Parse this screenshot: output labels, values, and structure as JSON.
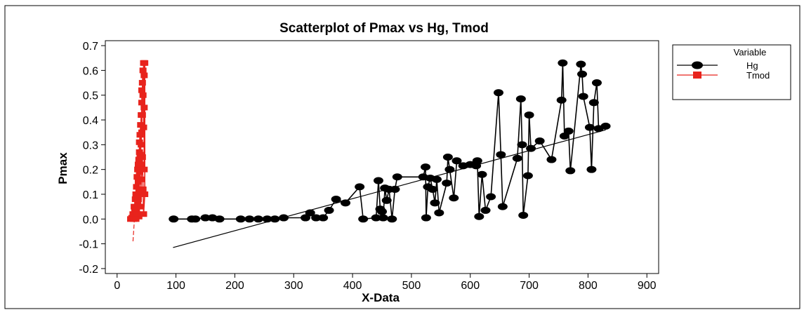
{
  "chart_data": {
    "type": "scatter",
    "title": "Scatterplot of Pmax vs Hg, Tmod",
    "xlabel": "X-Data",
    "ylabel": "Pmax",
    "xlim": [
      -20,
      920
    ],
    "ylim": [
      -0.22,
      0.72
    ],
    "xticks": [
      0,
      100,
      200,
      300,
      400,
      500,
      600,
      700,
      800,
      900
    ],
    "yticks": [
      -0.2,
      -0.1,
      0.0,
      0.1,
      0.2,
      0.3,
      0.4,
      0.5,
      0.6,
      0.7
    ],
    "ytick_labels": [
      "-0.2",
      "-0.1",
      "0.0",
      "0.1",
      "0.2",
      "0.3",
      "0.4",
      "0.5",
      "0.6",
      "0.7"
    ],
    "grid": false,
    "legend": {
      "title": "Variable",
      "placement": "right",
      "entries": [
        "Hg",
        "Tmod"
      ]
    },
    "series": [
      {
        "name": "Hg",
        "color": "#000000",
        "marker": "circle",
        "connected": true,
        "trendline": [
          [
            95,
            -0.115
          ],
          [
            830,
            0.36
          ]
        ],
        "points": [
          [
            96,
            0.0
          ],
          [
            127,
            0.0
          ],
          [
            133,
            0.0
          ],
          [
            150,
            0.005
          ],
          [
            162,
            0.005
          ],
          [
            174,
            0.0
          ],
          [
            210,
            0.0
          ],
          [
            225,
            0.0
          ],
          [
            240,
            0.0
          ],
          [
            255,
            0.0
          ],
          [
            268,
            0.0
          ],
          [
            283,
            0.005
          ],
          [
            320,
            0.005
          ],
          [
            328,
            0.025
          ],
          [
            338,
            0.005
          ],
          [
            350,
            0.005
          ],
          [
            360,
            0.035
          ],
          [
            372,
            0.08
          ],
          [
            388,
            0.065
          ],
          [
            412,
            0.13
          ],
          [
            418,
            0.0
          ],
          [
            440,
            0.005
          ],
          [
            444,
            0.155
          ],
          [
            447,
            0.04
          ],
          [
            450,
            0.03
          ],
          [
            452,
            0.005
          ],
          [
            455,
            0.125
          ],
          [
            458,
            0.075
          ],
          [
            462,
            0.12
          ],
          [
            467,
            0.0
          ],
          [
            472,
            0.12
          ],
          [
            476,
            0.17
          ],
          [
            520,
            0.17
          ],
          [
            524,
            0.21
          ],
          [
            525,
            0.005
          ],
          [
            528,
            0.13
          ],
          [
            532,
            0.165
          ],
          [
            536,
            0.12
          ],
          [
            540,
            0.065
          ],
          [
            543,
            0.16
          ],
          [
            547,
            0.025
          ],
          [
            560,
            0.145
          ],
          [
            562,
            0.25
          ],
          [
            565,
            0.2
          ],
          [
            572,
            0.085
          ],
          [
            577,
            0.235
          ],
          [
            588,
            0.215
          ],
          [
            600,
            0.22
          ],
          [
            610,
            0.215
          ],
          [
            612,
            0.235
          ],
          [
            615,
            0.01
          ],
          [
            620,
            0.18
          ],
          [
            626,
            0.035
          ],
          [
            635,
            0.09
          ],
          [
            648,
            0.51
          ],
          [
            652,
            0.26
          ],
          [
            655,
            0.05
          ],
          [
            680,
            0.245
          ],
          [
            686,
            0.485
          ],
          [
            688,
            0.3
          ],
          [
            690,
            0.015
          ],
          [
            698,
            0.175
          ],
          [
            700,
            0.42
          ],
          [
            703,
            0.285
          ],
          [
            718,
            0.315
          ],
          [
            738,
            0.24
          ],
          [
            755,
            0.48
          ],
          [
            757,
            0.63
          ],
          [
            760,
            0.335
          ],
          [
            767,
            0.355
          ],
          [
            770,
            0.195
          ],
          [
            788,
            0.625
          ],
          [
            790,
            0.585
          ],
          [
            792,
            0.495
          ],
          [
            803,
            0.37
          ],
          [
            806,
            0.2
          ],
          [
            810,
            0.47
          ],
          [
            815,
            0.55
          ],
          [
            818,
            0.365
          ],
          [
            830,
            0.375
          ]
        ]
      },
      {
        "name": "Tmod",
        "color": "#e8231c",
        "marker": "square",
        "connected": true,
        "trendline": [
          [
            27,
            -0.09
          ],
          [
            47,
            0.64
          ]
        ],
        "points": [
          [
            23,
            0.0
          ],
          [
            25,
            0.005
          ],
          [
            27,
            0.02
          ],
          [
            28,
            0.0
          ],
          [
            29,
            0.05
          ],
          [
            30,
            0.03
          ],
          [
            31,
            0.08
          ],
          [
            32,
            0.1
          ],
          [
            33,
            0.04
          ],
          [
            33,
            0.13
          ],
          [
            34,
            0.17
          ],
          [
            35,
            0.06
          ],
          [
            35,
            0.2
          ],
          [
            36,
            0.15
          ],
          [
            36,
            0.22
          ],
          [
            37,
            0.24
          ],
          [
            37,
            0.11
          ],
          [
            38,
            0.27
          ],
          [
            38,
            0.19
          ],
          [
            38,
            0.31
          ],
          [
            39,
            0.26
          ],
          [
            39,
            0.34
          ],
          [
            40,
            0.38
          ],
          [
            40,
            0.22
          ],
          [
            41,
            0.42
          ],
          [
            41,
            0.3
          ],
          [
            42,
            0.47
          ],
          [
            42,
            0.35
          ],
          [
            42,
            0.52
          ],
          [
            43,
            0.42
          ],
          [
            43,
            0.55
          ],
          [
            44,
            0.6
          ],
          [
            44,
            0.5
          ],
          [
            45,
            0.63
          ],
          [
            45,
            0.37
          ],
          [
            46,
            0.58
          ],
          [
            46,
            0.2
          ],
          [
            46,
            0.45
          ],
          [
            47,
            0.63
          ],
          [
            47,
            0.1
          ],
          [
            45,
            0.02
          ],
          [
            44,
            0.12
          ],
          [
            43,
            0.25
          ],
          [
            41,
            0.16
          ],
          [
            40,
            0.05
          ],
          [
            39,
            0.12
          ],
          [
            37,
            0.01
          ],
          [
            36,
            0.08
          ],
          [
            34,
            0.02
          ],
          [
            32,
            0.0
          ]
        ]
      }
    ]
  }
}
